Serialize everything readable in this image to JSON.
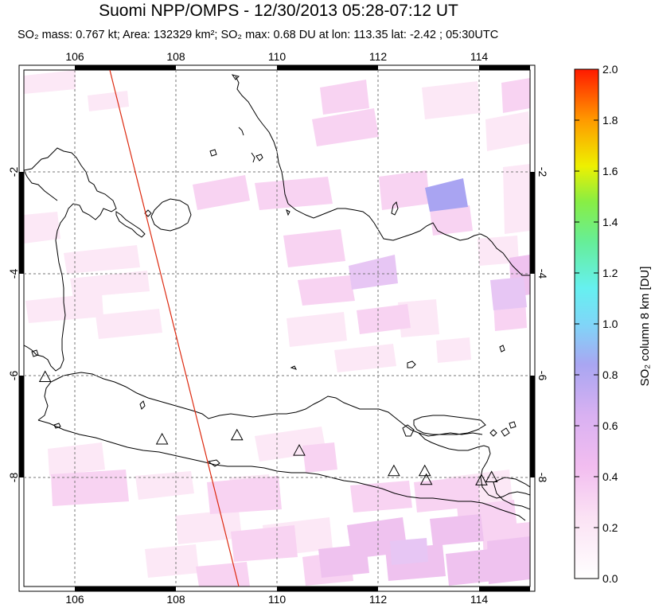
{
  "header": {
    "title": "Suomi NPP/OMPS - 12/30/2013 05:28-07:12 UT",
    "subtitle": "SO₂ mass: 0.767 kt; Area: 132329 km²; SO₂ max: 0.68 DU at lon: 113.35 lat: -2.42 ; 05:30UTC"
  },
  "map": {
    "lon_ticks": [
      "106",
      "108",
      "110",
      "112",
      "114"
    ],
    "lat_ticks": [
      "-2",
      "-4",
      "-6",
      "-8"
    ],
    "lon_range": [
      105,
      115
    ],
    "lat_range": [
      -10.2,
      -0.1
    ],
    "volcanoes_lonlat": [
      [
        105.42,
        -6.1
      ],
      [
        107.73,
        -7.32
      ],
      [
        109.21,
        -7.24
      ],
      [
        110.44,
        -7.54
      ],
      [
        112.31,
        -7.94
      ],
      [
        112.92,
        -7.94
      ],
      [
        112.95,
        -8.11
      ],
      [
        114.04,
        -8.12
      ],
      [
        114.24,
        -8.06
      ]
    ]
  },
  "colorbar": {
    "label": "SO₂ column 8 km [DU]",
    "ticks": [
      "0.0",
      "0.2",
      "0.4",
      "0.6",
      "0.8",
      "1.0",
      "1.2",
      "1.4",
      "1.6",
      "1.8",
      "2.0"
    ],
    "range": [
      0,
      2
    ]
  }
}
